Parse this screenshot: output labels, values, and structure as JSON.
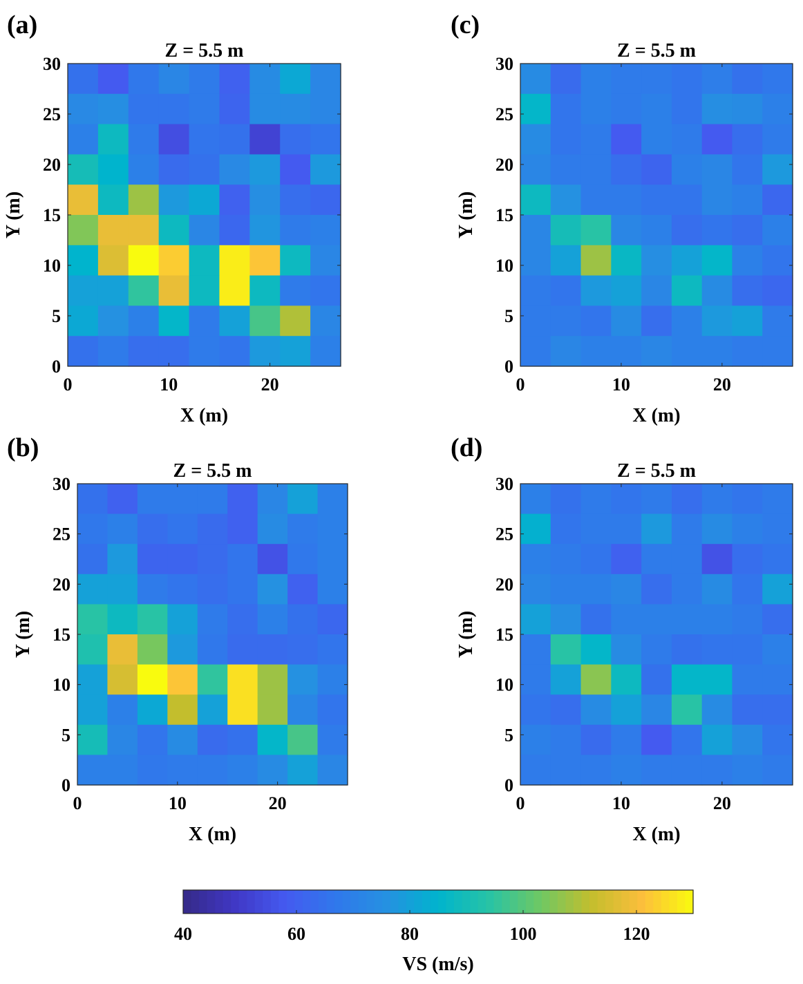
{
  "chart_data": {
    "type": "heatmap",
    "colorbar": {
      "label": "VS (m/s)",
      "range": [
        40,
        130
      ],
      "ticks": [
        "40",
        "60",
        "80",
        "100",
        "120"
      ],
      "tick_values": [
        40,
        60,
        80,
        100,
        120
      ],
      "colormap": "parula"
    },
    "panels": [
      {
        "letter": "(a)",
        "title": "Z = 5.5 m",
        "xlabel": "X (m)",
        "ylabel": "Y (m)",
        "xlim": [
          0,
          27
        ],
        "ylim": [
          0,
          30
        ],
        "xticks": [
          "0",
          "10",
          "20"
        ],
        "xtick_values": [
          0,
          10,
          20
        ],
        "yticks": [
          "0",
          "5",
          "10",
          "15",
          "20",
          "25",
          "30"
        ],
        "ytick_values": [
          0,
          5,
          10,
          15,
          20,
          25,
          30
        ],
        "cell_size": 3,
        "values_top_to_bottom": [
          [
            65,
            58,
            67,
            72,
            68,
            60,
            74,
            82,
            72
          ],
          [
            73,
            75,
            66,
            66,
            68,
            61,
            74,
            74,
            72
          ],
          [
            70,
            88,
            68,
            55,
            66,
            65,
            52,
            64,
            66
          ],
          [
            90,
            85,
            70,
            63,
            65,
            73,
            78,
            58,
            78
          ],
          [
            118,
            88,
            108,
            78,
            82,
            60,
            75,
            64,
            62
          ],
          [
            105,
            118,
            118,
            88,
            72,
            62,
            77,
            68,
            70
          ],
          [
            85,
            116,
            130,
            123,
            88,
            128,
            122,
            88,
            72
          ],
          [
            80,
            80,
            95,
            118,
            88,
            128,
            88,
            68,
            66
          ],
          [
            82,
            76,
            70,
            86,
            68,
            80,
            98,
            110,
            72
          ],
          [
            65,
            68,
            64,
            64,
            68,
            66,
            78,
            80,
            70
          ]
        ]
      },
      {
        "letter": "(b)",
        "title": "Z = 5.5 m",
        "xlabel": "X (m)",
        "ylabel": "Y (m)",
        "xlim": [
          0,
          27
        ],
        "ylim": [
          0,
          30
        ],
        "xticks": [
          "0",
          "10",
          "20"
        ],
        "xtick_values": [
          0,
          10,
          20
        ],
        "yticks": [
          "0",
          "5",
          "10",
          "15",
          "20",
          "25",
          "30"
        ],
        "ytick_values": [
          0,
          5,
          10,
          15,
          20,
          25,
          30
        ],
        "cell_size": 3,
        "values_top_to_bottom": [
          [
            65,
            60,
            68,
            68,
            68,
            60,
            72,
            80,
            70
          ],
          [
            67,
            70,
            64,
            66,
            63,
            60,
            74,
            68,
            70
          ],
          [
            65,
            78,
            61,
            61,
            63,
            66,
            56,
            67,
            70
          ],
          [
            80,
            80,
            68,
            66,
            64,
            66,
            76,
            60,
            70
          ],
          [
            94,
            88,
            94,
            80,
            68,
            64,
            70,
            65,
            62
          ],
          [
            92,
            118,
            104,
            78,
            67,
            63,
            63,
            64,
            66
          ],
          [
            80,
            115,
            130,
            122,
            95,
            126,
            108,
            76,
            70
          ],
          [
            80,
            70,
            82,
            112,
            80,
            126,
            108,
            72,
            66
          ],
          [
            90,
            72,
            66,
            74,
            63,
            65,
            86,
            98,
            68
          ],
          [
            70,
            70,
            67,
            68,
            68,
            70,
            74,
            80,
            72
          ]
        ]
      },
      {
        "letter": "(c)",
        "title": "Z = 5.5 m",
        "xlabel": "X (m)",
        "ylabel": "Y (m)",
        "xlim": [
          0,
          27
        ],
        "ylim": [
          0,
          30
        ],
        "xticks": [
          "0",
          "10",
          "20"
        ],
        "xtick_values": [
          0,
          10,
          20
        ],
        "yticks": [
          "0",
          "5",
          "10",
          "15",
          "20",
          "25",
          "30"
        ],
        "ytick_values": [
          0,
          5,
          10,
          15,
          20,
          25,
          30
        ],
        "cell_size": 3,
        "values_top_to_bottom": [
          [
            74,
            63,
            70,
            68,
            68,
            66,
            69,
            65,
            67
          ],
          [
            86,
            66,
            70,
            68,
            70,
            66,
            75,
            74,
            70
          ],
          [
            74,
            66,
            68,
            58,
            70,
            68,
            58,
            64,
            68
          ],
          [
            72,
            68,
            68,
            64,
            61,
            70,
            72,
            66,
            78
          ],
          [
            88,
            76,
            68,
            68,
            66,
            66,
            72,
            70,
            62
          ],
          [
            72,
            90,
            94,
            72,
            70,
            64,
            66,
            64,
            70
          ],
          [
            72,
            80,
            108,
            87,
            75,
            80,
            86,
            70,
            66
          ],
          [
            68,
            66,
            78,
            80,
            72,
            88,
            74,
            64,
            62
          ],
          [
            68,
            68,
            66,
            74,
            64,
            70,
            78,
            80,
            68
          ],
          [
            68,
            72,
            70,
            70,
            72,
            70,
            70,
            68,
            68
          ]
        ]
      },
      {
        "letter": "(d)",
        "title": "Z = 5.5 m",
        "xlabel": "X (m)",
        "ylabel": "Y (m)",
        "xlim": [
          0,
          27
        ],
        "ylim": [
          0,
          30
        ],
        "xticks": [
          "0",
          "10",
          "20"
        ],
        "xtick_values": [
          0,
          10,
          20
        ],
        "yticks": [
          "0",
          "5",
          "10",
          "15",
          "20",
          "25",
          "30"
        ],
        "ytick_values": [
          0,
          5,
          10,
          15,
          20,
          25,
          30
        ],
        "cell_size": 3,
        "values_top_to_bottom": [
          [
            70,
            65,
            68,
            66,
            68,
            64,
            68,
            66,
            68
          ],
          [
            84,
            66,
            68,
            68,
            78,
            68,
            74,
            70,
            68
          ],
          [
            70,
            68,
            66,
            60,
            68,
            68,
            56,
            64,
            66
          ],
          [
            72,
            70,
            70,
            72,
            64,
            68,
            74,
            66,
            80
          ],
          [
            80,
            75,
            65,
            70,
            70,
            70,
            70,
            68,
            64
          ],
          [
            68,
            94,
            86,
            74,
            68,
            65,
            66,
            66,
            70
          ],
          [
            68,
            80,
            106,
            88,
            65,
            86,
            86,
            68,
            68
          ],
          [
            66,
            64,
            74,
            80,
            72,
            94,
            74,
            64,
            64
          ],
          [
            70,
            68,
            63,
            68,
            58,
            66,
            80,
            74,
            66
          ],
          [
            68,
            68,
            68,
            70,
            68,
            68,
            68,
            70,
            68
          ]
        ]
      }
    ]
  }
}
